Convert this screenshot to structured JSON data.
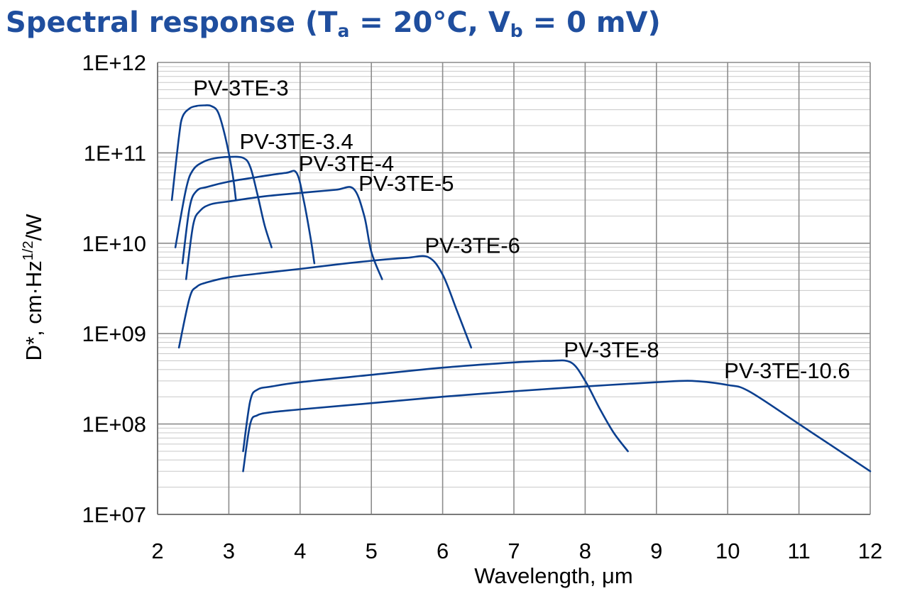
{
  "title": {
    "prefix": "Spectral response (T",
    "sub1": "a",
    "mid": " = 20°C, V",
    "sub2": "b",
    "suffix": " = 0 mV)"
  },
  "colors": {
    "title": "#1f4e9e",
    "series": "#0b3f8f",
    "grid_major": "#8c8c8c",
    "grid_minor": "#c8c8c8"
  },
  "chart_data": {
    "type": "line",
    "title": "Spectral response (Ta = 20°C, Vb = 0 mV)",
    "xlabel": "Wavelength, μm",
    "ylabel": "D*, cm·Hz1/2/W",
    "ylabel_parts": {
      "base": "D*, cm·Hz",
      "sup": "1/2",
      "tail": "/W"
    },
    "x_scale": "linear",
    "y_scale": "log",
    "xlim": [
      2,
      12
    ],
    "ylim": [
      10000000.0,
      1000000000000.0
    ],
    "x_ticks": [
      "2",
      "3",
      "4",
      "5",
      "6",
      "7",
      "8",
      "9",
      "10",
      "11",
      "12"
    ],
    "y_ticks": [
      "1E+07",
      "1E+08",
      "1E+09",
      "1E+10",
      "1E+11",
      "1E+12"
    ],
    "grid": true,
    "legend": "none",
    "series": [
      {
        "name": "PV-3TE-3",
        "x": [
          2.2,
          2.3,
          2.35,
          2.45,
          2.55,
          2.65,
          2.75,
          2.85,
          2.95,
          3.05,
          3.1
        ],
        "y": [
          30000000000.0,
          150000000000.0,
          250000000000.0,
          310000000000.0,
          330000000000.0,
          335000000000.0,
          330000000000.0,
          280000000000.0,
          150000000000.0,
          60000000000.0,
          30000000000.0
        ]
      },
      {
        "name": "PV-3TE-3.4",
        "x": [
          2.25,
          2.4,
          2.5,
          2.65,
          2.8,
          3.0,
          3.2,
          3.3,
          3.4,
          3.5,
          3.6
        ],
        "y": [
          9000000000.0,
          40000000000.0,
          65000000000.0,
          80000000000.0,
          87000000000.0,
          90000000000.0,
          88000000000.0,
          70000000000.0,
          35000000000.0,
          16000000000.0,
          9000000000.0
        ]
      },
      {
        "name": "PV-3TE-4",
        "x": [
          2.35,
          2.45,
          2.55,
          2.7,
          3.0,
          3.4,
          3.8,
          3.95,
          4.05,
          4.15,
          4.2
        ],
        "y": [
          6000000000.0,
          25000000000.0,
          38000000000.0,
          42000000000.0,
          48000000000.0,
          54000000000.0,
          60000000000.0,
          60000000000.0,
          30000000000.0,
          11000000000.0,
          6000000000.0
        ]
      },
      {
        "name": "PV-3TE-5",
        "x": [
          2.4,
          2.5,
          2.6,
          2.75,
          3.0,
          3.5,
          4.0,
          4.5,
          4.75,
          4.9,
          5.0,
          5.15
        ],
        "y": [
          4000000000.0,
          16000000000.0,
          23000000000.0,
          27000000000.0,
          29000000000.0,
          33000000000.0,
          36000000000.0,
          39000000000.0,
          40000000000.0,
          20000000000.0,
          8000000000.0,
          4000000000.0
        ]
      },
      {
        "name": "PV-3TE-6",
        "x": [
          2.3,
          2.45,
          2.55,
          2.7,
          3.0,
          3.5,
          4.0,
          4.5,
          5.0,
          5.5,
          5.8,
          6.0,
          6.2,
          6.4
        ],
        "y": [
          700000000.0,
          2500000000.0,
          3300000000.0,
          3700000000.0,
          4200000000.0,
          4700000000.0,
          5200000000.0,
          5800000000.0,
          6400000000.0,
          6900000000.0,
          7000000000.0,
          4500000000.0,
          1800000000.0,
          700000000.0
        ]
      },
      {
        "name": "PV-3TE-8",
        "x": [
          3.2,
          3.3,
          3.4,
          3.6,
          4.0,
          5.0,
          6.0,
          7.0,
          7.5,
          7.8,
          8.0,
          8.2,
          8.4,
          8.6
        ],
        "y": [
          50000000.0,
          180000000.0,
          240000000.0,
          260000000.0,
          290000000.0,
          350000000.0,
          420000000.0,
          480000000.0,
          500000000.0,
          480000000.0,
          300000000.0,
          150000000.0,
          80000000.0,
          50000000.0
        ]
      },
      {
        "name": "PV-3TE-10.6",
        "x": [
          3.2,
          3.3,
          3.4,
          3.6,
          4.0,
          5.0,
          6.0,
          7.0,
          8.0,
          9.0,
          9.5,
          10.0,
          10.3,
          11.0,
          12.0
        ],
        "y": [
          30000000.0,
          100000000.0,
          125000000.0,
          135000000.0,
          145000000.0,
          170000000.0,
          200000000.0,
          230000000.0,
          260000000.0,
          290000000.0,
          300000000.0,
          270000000.0,
          230000000.0,
          100000000.0,
          30000000.0
        ]
      }
    ],
    "annotations": [
      {
        "text": "PV-3TE-3",
        "x": 2.5,
        "y": 430000000000.0
      },
      {
        "text": "PV-3TE-3.4",
        "x": 3.15,
        "y": 110000000000.0
      },
      {
        "text": "PV-3TE-4",
        "x": 3.98,
        "y": 63000000000.0
      },
      {
        "text": "PV-3TE-5",
        "x": 4.82,
        "y": 38000000000.0
      },
      {
        "text": "PV-3TE-6",
        "x": 5.75,
        "y": 7800000000.0
      },
      {
        "text": "PV-3TE-8",
        "x": 7.7,
        "y": 550000000.0
      },
      {
        "text": "PV-3TE-10.6",
        "x": 9.95,
        "y": 320000000.0
      }
    ]
  }
}
